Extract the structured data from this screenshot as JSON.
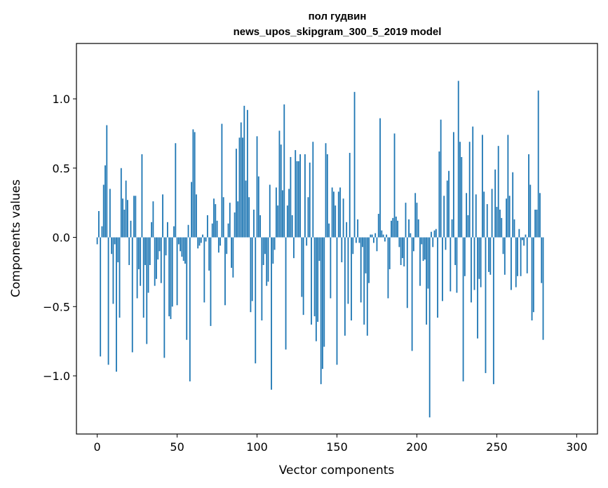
{
  "chart_data": {
    "type": "bar",
    "title": "пол гудвин",
    "subtitle": "news_upos_skipgram_300_5_2019 model",
    "xlabel": "Vector components",
    "ylabel": "Components values",
    "xlim": [
      -13,
      313
    ],
    "ylim": [
      -1.42,
      1.4
    ],
    "xticks": [
      0,
      50,
      100,
      150,
      200,
      250,
      300
    ],
    "xtick_labels": [
      "0",
      "50",
      "100",
      "150",
      "200",
      "250",
      "300"
    ],
    "yticks": [
      -1.0,
      -0.5,
      0.0,
      0.5,
      1.0
    ],
    "ytick_labels": [
      "−1.0",
      "−0.5",
      "0.0",
      "0.5",
      "1.0"
    ],
    "bar_color": "#1f77b4",
    "grid": false,
    "values": [
      -0.05,
      0.19,
      -0.86,
      0.08,
      0.38,
      0.52,
      0.81,
      -0.92,
      0.35,
      -0.12,
      -0.48,
      -0.05,
      -0.97,
      -0.18,
      -0.58,
      0.5,
      0.28,
      0.2,
      0.41,
      0.27,
      -0.2,
      0.12,
      -0.83,
      0.3,
      0.3,
      -0.44,
      -0.23,
      -0.35,
      0.6,
      -0.58,
      -0.2,
      -0.77,
      -0.4,
      -0.2,
      0.11,
      0.26,
      -0.35,
      -0.3,
      -0.16,
      -0.1,
      -0.33,
      0.31,
      -0.87,
      -0.13,
      0.11,
      -0.57,
      -0.59,
      -0.5,
      0.08,
      0.68,
      -0.49,
      -0.05,
      -0.1,
      -0.14,
      -0.17,
      -0.19,
      -0.74,
      0.09,
      -1.04,
      0.4,
      0.78,
      0.76,
      0.31,
      -0.08,
      -0.06,
      -0.04,
      0.02,
      -0.47,
      -0.03,
      0.16,
      -0.24,
      -0.64,
      0.1,
      0.28,
      0.24,
      0.12,
      -0.11,
      -0.06,
      0.82,
      0.29,
      -0.49,
      -0.12,
      0.1,
      0.25,
      -0.22,
      -0.29,
      0.18,
      0.64,
      0.26,
      0.72,
      0.83,
      0.72,
      0.95,
      0.41,
      0.92,
      0.29,
      -0.54,
      -0.46,
      0.2,
      -0.91,
      0.73,
      0.44,
      0.16,
      -0.6,
      -0.2,
      -0.12,
      -0.35,
      -0.32,
      0.38,
      -1.1,
      -0.19,
      -0.09,
      0.36,
      0.23,
      0.77,
      0.67,
      0.34,
      0.96,
      -0.81,
      0.23,
      0.35,
      0.58,
      0.16,
      -0.15,
      0.63,
      0.55,
      0.55,
      0.6,
      -0.43,
      -0.56,
      0.6,
      -0.06,
      0.29,
      0.54,
      -0.63,
      0.69,
      -0.57,
      -0.75,
      -0.61,
      -0.17,
      -1.06,
      -0.95,
      -0.79,
      0.68,
      0.6,
      0.1,
      -0.44,
      0.36,
      0.33,
      0.23,
      -0.92,
      0.33,
      0.36,
      -0.18,
      0.28,
      -0.71,
      0.11,
      -0.48,
      0.61,
      -0.6,
      -0.12,
      1.05,
      -0.04,
      0.13,
      -0.04,
      -0.47,
      -0.07,
      -0.63,
      -0.26,
      -0.71,
      -0.33,
      0.02,
      0.02,
      -0.04,
      0.03,
      -0.1,
      0.17,
      0.86,
      0.05,
      0.02,
      -0.03,
      0.02,
      -0.44,
      -0.23,
      0.12,
      0.14,
      0.75,
      0.15,
      0.12,
      -0.07,
      -0.2,
      -0.15,
      -0.21,
      0.25,
      -0.51,
      0.13,
      0.03,
      -0.82,
      -0.1,
      0.32,
      0.25,
      0.13,
      -0.35,
      -0.05,
      -0.17,
      -0.16,
      -0.63,
      -0.37,
      -1.3,
      0.04,
      -0.07,
      0.05,
      0.06,
      -0.58,
      0.62,
      0.85,
      -0.46,
      0.3,
      -0.09,
      0.41,
      0.48,
      -0.39,
      0.13,
      0.76,
      -0.2,
      -0.4,
      1.13,
      0.69,
      0.58,
      -1.04,
      -0.28,
      0.32,
      0.16,
      0.69,
      -0.47,
      0.8,
      -0.38,
      0.31,
      -0.73,
      -0.3,
      -0.36,
      0.74,
      0.33,
      -0.98,
      0.24,
      -0.25,
      -0.27,
      0.35,
      -1.06,
      0.49,
      0.22,
      0.66,
      0.2,
      0.14,
      -0.12,
      -0.27,
      0.28,
      0.74,
      0.3,
      -0.38,
      0.47,
      0.13,
      -0.36,
      -0.28,
      0.06,
      -0.28,
      -0.02,
      -0.06,
      0.02,
      -0.26,
      0.6,
      0.38,
      -0.6,
      -0.54,
      0.2,
      0.2,
      1.06,
      0.32,
      -0.33,
      -0.74
    ]
  }
}
